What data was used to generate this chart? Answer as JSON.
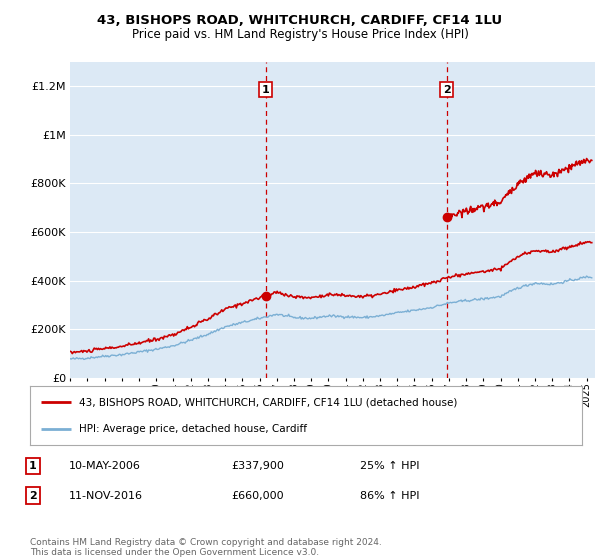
{
  "title1": "43, BISHOPS ROAD, WHITCHURCH, CARDIFF, CF14 1LU",
  "title2": "Price paid vs. HM Land Registry's House Price Index (HPI)",
  "ylim": [
    0,
    1300000
  ],
  "yticks": [
    0,
    200000,
    400000,
    600000,
    800000,
    1000000,
    1200000
  ],
  "xlim_start": 1995.0,
  "xlim_end": 2025.5,
  "background_color": "#dce9f5",
  "grid_color": "#ffffff",
  "hpi_color": "#7bafd4",
  "price_color": "#cc0000",
  "dashed_color": "#cc0000",
  "marker1_x": 2006.36,
  "marker1_y": 337900,
  "marker2_x": 2016.87,
  "marker2_y": 660000,
  "label1_date": "10-MAY-2006",
  "label1_price": "£337,900",
  "label1_hpi": "25% ↑ HPI",
  "label2_date": "11-NOV-2016",
  "label2_price": "£660,000",
  "label2_hpi": "86% ↑ HPI",
  "legend_line1": "43, BISHOPS ROAD, WHITCHURCH, CARDIFF, CF14 1LU (detached house)",
  "legend_line2": "HPI: Average price, detached house, Cardiff",
  "footer": "Contains HM Land Registry data © Crown copyright and database right 2024.\nThis data is licensed under the Open Government Licence v3.0."
}
